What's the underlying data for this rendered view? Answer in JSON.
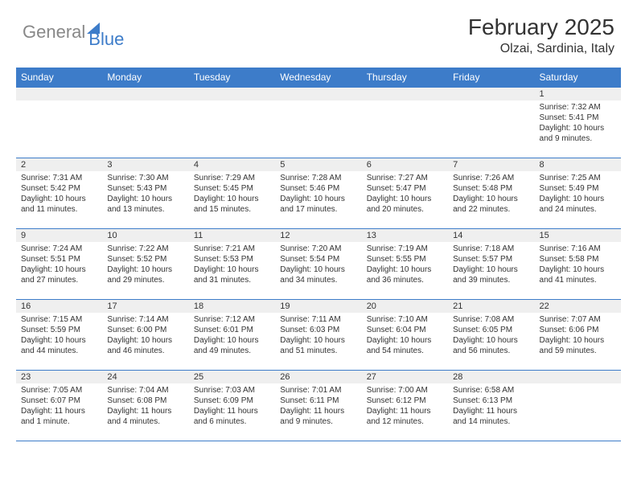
{
  "logo": {
    "text1": "General",
    "text2": "Blue"
  },
  "title": "February 2025",
  "location": "Olzai, Sardinia, Italy",
  "colors": {
    "header_bg": "#3d7cc9",
    "header_text": "#ffffff",
    "daynum_bg": "#efefef",
    "border": "#3d7cc9",
    "body_text": "#333333",
    "logo_gray": "#888888",
    "logo_blue": "#3d7cc9",
    "background": "#ffffff"
  },
  "day_headers": [
    "Sunday",
    "Monday",
    "Tuesday",
    "Wednesday",
    "Thursday",
    "Friday",
    "Saturday"
  ],
  "weeks": [
    [
      {
        "num": "",
        "lines": []
      },
      {
        "num": "",
        "lines": []
      },
      {
        "num": "",
        "lines": []
      },
      {
        "num": "",
        "lines": []
      },
      {
        "num": "",
        "lines": []
      },
      {
        "num": "",
        "lines": []
      },
      {
        "num": "1",
        "lines": [
          "Sunrise: 7:32 AM",
          "Sunset: 5:41 PM",
          "Daylight: 10 hours and 9 minutes."
        ]
      }
    ],
    [
      {
        "num": "2",
        "lines": [
          "Sunrise: 7:31 AM",
          "Sunset: 5:42 PM",
          "Daylight: 10 hours and 11 minutes."
        ]
      },
      {
        "num": "3",
        "lines": [
          "Sunrise: 7:30 AM",
          "Sunset: 5:43 PM",
          "Daylight: 10 hours and 13 minutes."
        ]
      },
      {
        "num": "4",
        "lines": [
          "Sunrise: 7:29 AM",
          "Sunset: 5:45 PM",
          "Daylight: 10 hours and 15 minutes."
        ]
      },
      {
        "num": "5",
        "lines": [
          "Sunrise: 7:28 AM",
          "Sunset: 5:46 PM",
          "Daylight: 10 hours and 17 minutes."
        ]
      },
      {
        "num": "6",
        "lines": [
          "Sunrise: 7:27 AM",
          "Sunset: 5:47 PM",
          "Daylight: 10 hours and 20 minutes."
        ]
      },
      {
        "num": "7",
        "lines": [
          "Sunrise: 7:26 AM",
          "Sunset: 5:48 PM",
          "Daylight: 10 hours and 22 minutes."
        ]
      },
      {
        "num": "8",
        "lines": [
          "Sunrise: 7:25 AM",
          "Sunset: 5:49 PM",
          "Daylight: 10 hours and 24 minutes."
        ]
      }
    ],
    [
      {
        "num": "9",
        "lines": [
          "Sunrise: 7:24 AM",
          "Sunset: 5:51 PM",
          "Daylight: 10 hours and 27 minutes."
        ]
      },
      {
        "num": "10",
        "lines": [
          "Sunrise: 7:22 AM",
          "Sunset: 5:52 PM",
          "Daylight: 10 hours and 29 minutes."
        ]
      },
      {
        "num": "11",
        "lines": [
          "Sunrise: 7:21 AM",
          "Sunset: 5:53 PM",
          "Daylight: 10 hours and 31 minutes."
        ]
      },
      {
        "num": "12",
        "lines": [
          "Sunrise: 7:20 AM",
          "Sunset: 5:54 PM",
          "Daylight: 10 hours and 34 minutes."
        ]
      },
      {
        "num": "13",
        "lines": [
          "Sunrise: 7:19 AM",
          "Sunset: 5:55 PM",
          "Daylight: 10 hours and 36 minutes."
        ]
      },
      {
        "num": "14",
        "lines": [
          "Sunrise: 7:18 AM",
          "Sunset: 5:57 PM",
          "Daylight: 10 hours and 39 minutes."
        ]
      },
      {
        "num": "15",
        "lines": [
          "Sunrise: 7:16 AM",
          "Sunset: 5:58 PM",
          "Daylight: 10 hours and 41 minutes."
        ]
      }
    ],
    [
      {
        "num": "16",
        "lines": [
          "Sunrise: 7:15 AM",
          "Sunset: 5:59 PM",
          "Daylight: 10 hours and 44 minutes."
        ]
      },
      {
        "num": "17",
        "lines": [
          "Sunrise: 7:14 AM",
          "Sunset: 6:00 PM",
          "Daylight: 10 hours and 46 minutes."
        ]
      },
      {
        "num": "18",
        "lines": [
          "Sunrise: 7:12 AM",
          "Sunset: 6:01 PM",
          "Daylight: 10 hours and 49 minutes."
        ]
      },
      {
        "num": "19",
        "lines": [
          "Sunrise: 7:11 AM",
          "Sunset: 6:03 PM",
          "Daylight: 10 hours and 51 minutes."
        ]
      },
      {
        "num": "20",
        "lines": [
          "Sunrise: 7:10 AM",
          "Sunset: 6:04 PM",
          "Daylight: 10 hours and 54 minutes."
        ]
      },
      {
        "num": "21",
        "lines": [
          "Sunrise: 7:08 AM",
          "Sunset: 6:05 PM",
          "Daylight: 10 hours and 56 minutes."
        ]
      },
      {
        "num": "22",
        "lines": [
          "Sunrise: 7:07 AM",
          "Sunset: 6:06 PM",
          "Daylight: 10 hours and 59 minutes."
        ]
      }
    ],
    [
      {
        "num": "23",
        "lines": [
          "Sunrise: 7:05 AM",
          "Sunset: 6:07 PM",
          "Daylight: 11 hours and 1 minute."
        ]
      },
      {
        "num": "24",
        "lines": [
          "Sunrise: 7:04 AM",
          "Sunset: 6:08 PM",
          "Daylight: 11 hours and 4 minutes."
        ]
      },
      {
        "num": "25",
        "lines": [
          "Sunrise: 7:03 AM",
          "Sunset: 6:09 PM",
          "Daylight: 11 hours and 6 minutes."
        ]
      },
      {
        "num": "26",
        "lines": [
          "Sunrise: 7:01 AM",
          "Sunset: 6:11 PM",
          "Daylight: 11 hours and 9 minutes."
        ]
      },
      {
        "num": "27",
        "lines": [
          "Sunrise: 7:00 AM",
          "Sunset: 6:12 PM",
          "Daylight: 11 hours and 12 minutes."
        ]
      },
      {
        "num": "28",
        "lines": [
          "Sunrise: 6:58 AM",
          "Sunset: 6:13 PM",
          "Daylight: 11 hours and 14 minutes."
        ]
      },
      {
        "num": "",
        "lines": []
      }
    ]
  ]
}
